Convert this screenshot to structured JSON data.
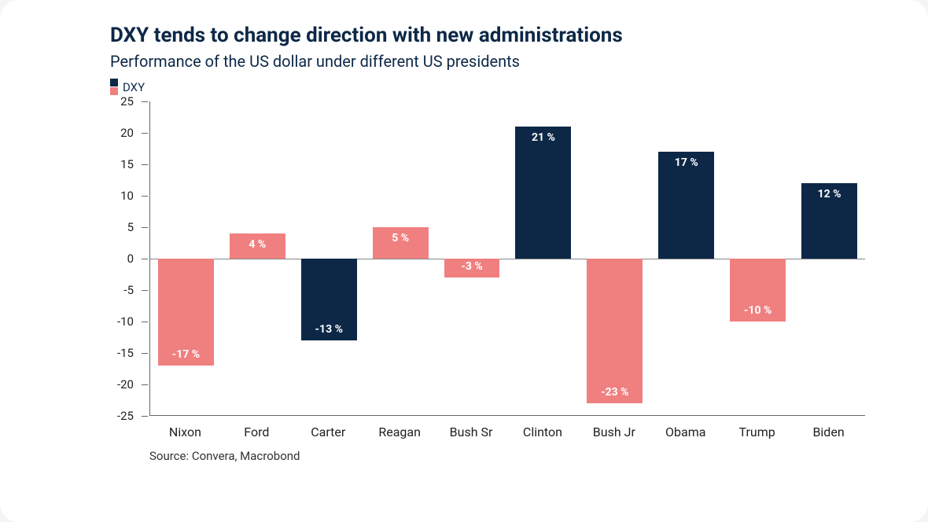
{
  "chart": {
    "type": "bar",
    "title": "DXY tends to change direction with new administrations",
    "subtitle": "Performance of the US dollar under different US presidents",
    "title_color": "#0d2847",
    "title_fontsize": 26,
    "subtitle_fontsize": 20,
    "legend": {
      "label": "DXY",
      "swatch_colors": [
        "#0d2847",
        "#f08080"
      ]
    },
    "categories": [
      "Nixon",
      "Ford",
      "Carter",
      "Reagan",
      "Bush Sr",
      "Clinton",
      "Bush Jr",
      "Obama",
      "Trump",
      "Biden"
    ],
    "values": [
      -17,
      4,
      -13,
      5,
      -3,
      21,
      -23,
      17,
      -10,
      12
    ],
    "value_labels": [
      "-17 %",
      "4 %",
      "-13 %",
      "5 %",
      "-3 %",
      "21 %",
      "-23 %",
      "17 %",
      "-10 %",
      "12 %"
    ],
    "bar_colors": [
      "#f08080",
      "#f08080",
      "#0d2847",
      "#f08080",
      "#f08080",
      "#0d2847",
      "#f08080",
      "#0d2847",
      "#f08080",
      "#0d2847"
    ],
    "ylim": [
      -25,
      25
    ],
    "ytick_step": 5,
    "yticks": [
      25,
      20,
      15,
      10,
      5,
      0,
      -5,
      -10,
      -15,
      -20,
      -25
    ],
    "bar_width_ratio": 0.78,
    "background_color": "#ffffff",
    "axis_color": "#666666",
    "label_fontsize": 16,
    "value_label_fontsize": 14,
    "value_label_color": "#ffffff"
  },
  "source": "Source: Convera, Macrobond"
}
